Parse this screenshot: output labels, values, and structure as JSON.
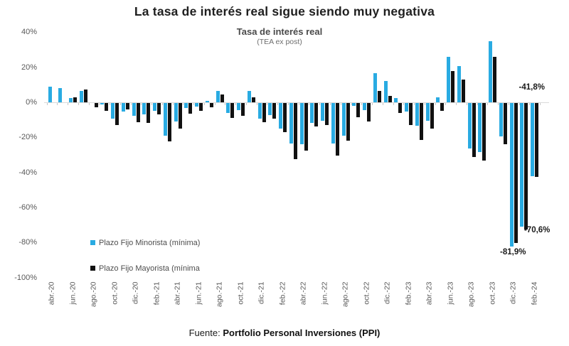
{
  "title": "La tasa de interés real sigue siendo muy negativa",
  "subtitle": "Tasa de interés real",
  "subtitle_note": "(TEA ex post)",
  "source": {
    "prefix": "Fuente:",
    "text": "Portfolio Personal Inversiones (PPI)"
  },
  "legend": {
    "position": "bottom-left-inside",
    "items": [
      {
        "label": "Plazo Fijo Minorista (mínima)",
        "color": "#29ABE2"
      },
      {
        "label": "Plazo Fijo Mayorista (mínima",
        "color": "#111111"
      }
    ]
  },
  "chart_data": {
    "type": "bar",
    "title": "Tasa de interés real",
    "subtitle": "(TEA ex post)",
    "ylim": [
      -100,
      40
    ],
    "grid": false,
    "y_tick_values": [
      40,
      20,
      0,
      -20,
      -40,
      -60,
      -80,
      -100
    ],
    "y_tick_labels": [
      "40%",
      "20%",
      "0%",
      "-20%",
      "-40%",
      "-60%",
      "-80%",
      "-100%"
    ],
    "x_tick_every": 2,
    "categories": [
      "abr.-20",
      "may.-20",
      "jun.-20",
      "jul.-20",
      "ago.-20",
      "sep.-20",
      "oct.-20",
      "nov.-20",
      "dic.-20",
      "ene.-21",
      "feb.-21",
      "mar.-21",
      "abr.-21",
      "may.-21",
      "jun.-21",
      "jul.-21",
      "ago.-21",
      "sep.-21",
      "oct.-21",
      "nov.-21",
      "dic.-21",
      "ene.-22",
      "feb.-22",
      "mar.-22",
      "abr.-22",
      "may.-22",
      "jun.-22",
      "jul.-22",
      "ago.-22",
      "sep.-22",
      "oct.-22",
      "nov.-22",
      "dic.-22",
      "ene.-23",
      "feb.-23",
      "mar.-23",
      "abr.-23",
      "may.-23",
      "jun.-23",
      "jul.-23",
      "ago.-23",
      "sep.-23",
      "oct.-23",
      "nov.-23",
      "dic.-23",
      "ene.-24",
      "feb.-24"
    ],
    "series": [
      {
        "name": "Plazo Fijo Minorista (mínima)",
        "color": "#29ABE2",
        "values": [
          9,
          8,
          2.5,
          6.5,
          0,
          -1,
          -9,
          -5,
          -7.5,
          -6.5,
          -4.5,
          -18.5,
          -10.5,
          -3,
          -2,
          1,
          6.5,
          -5.5,
          -4,
          6.3,
          -9,
          -7,
          -14.5,
          -23,
          -23.5,
          -11.5,
          -10,
          -23,
          -18.5,
          -1.5,
          -4,
          16.5,
          12,
          2.3,
          -5,
          -13,
          -10,
          2.7,
          26,
          20.5,
          -26,
          -28,
          35,
          -19,
          -81.9,
          -70.6,
          -41.8
        ]
      },
      {
        "name": "Plazo Fijo Mayorista (mínima",
        "color": "#111111",
        "values": [
          0,
          0,
          3,
          7.5,
          -2.5,
          -4.5,
          -12.5,
          -3.5,
          -11,
          -11.5,
          -6.5,
          -22,
          -14.5,
          -6,
          -4.5,
          -2.5,
          4.3,
          -8.5,
          -7.5,
          2.7,
          -11,
          -9,
          -16.5,
          -32,
          -27,
          -13.5,
          -12.5,
          -30,
          -21.5,
          -8,
          -10.5,
          6.6,
          3.6,
          -5.8,
          -12.5,
          -21,
          -14.5,
          -4.5,
          18,
          13,
          -31,
          -33,
          26,
          -23.5,
          -80,
          -72,
          -42
        ]
      }
    ],
    "annotations": [
      {
        "text": "-41,8%",
        "month": "feb.-24",
        "series": 0,
        "placement": "above-axis"
      },
      {
        "text": "-70,6%",
        "month": "ene.-24",
        "series": 1,
        "placement": "beside-bar-end"
      },
      {
        "text": "-81,9%",
        "month": "dic.-23",
        "series": 0,
        "placement": "below-bar"
      }
    ]
  }
}
